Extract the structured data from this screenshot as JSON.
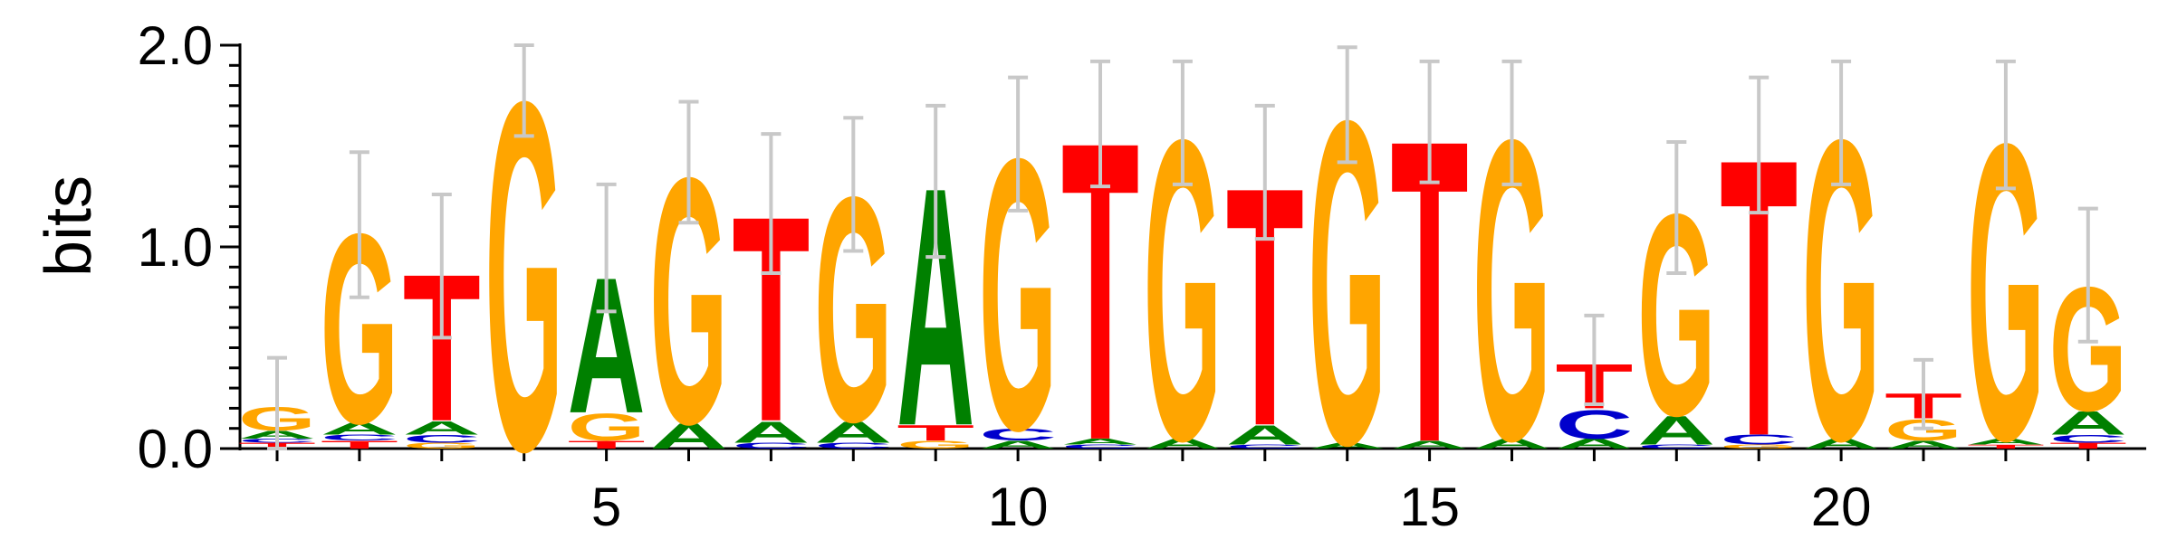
{
  "chart_data": {
    "type": "sequence-logo",
    "ylabel": "bits",
    "ylim": [
      0,
      2
    ],
    "y_ticks": [
      "0.0",
      "1.0",
      "2.0"
    ],
    "x_ticks": [
      "5",
      "10",
      "15",
      "20"
    ],
    "x_tick_positions": [
      5,
      10,
      15,
      20
    ],
    "colors": {
      "A": "#008000",
      "C": "#0000cc",
      "G": "#ffa500",
      "T": "#ff0000"
    },
    "positions": [
      {
        "pos": 1,
        "stack": [
          [
            "T",
            0.03
          ],
          [
            "C",
            0.02
          ],
          [
            "A",
            0.04
          ],
          [
            "G",
            0.12
          ]
        ],
        "error": [
          0.0,
          0.45
        ]
      },
      {
        "pos": 2,
        "stack": [
          [
            "T",
            0.04
          ],
          [
            "C",
            0.03
          ],
          [
            "A",
            0.06
          ],
          [
            "G",
            0.98
          ]
        ],
        "error": [
          0.75,
          1.47
        ]
      },
      {
        "pos": 3,
        "stack": [
          [
            "G",
            0.03
          ],
          [
            "C",
            0.04
          ],
          [
            "A",
            0.07
          ],
          [
            "T",
            0.76
          ]
        ],
        "error": [
          0.55,
          1.26
        ]
      },
      {
        "pos": 4,
        "stack": [
          [
            "G",
            1.8
          ]
        ],
        "error": [
          1.55,
          2.0
        ]
      },
      {
        "pos": 5,
        "stack": [
          [
            "T",
            0.04
          ],
          [
            "G",
            0.14
          ],
          [
            "A",
            0.7
          ]
        ],
        "error": [
          0.68,
          1.31
        ]
      },
      {
        "pos": 6,
        "stack": [
          [
            "A",
            0.13
          ],
          [
            "G",
            1.27
          ]
        ],
        "error": [
          1.12,
          1.72
        ]
      },
      {
        "pos": 7,
        "stack": [
          [
            "C",
            0.03
          ],
          [
            "A",
            0.11
          ],
          [
            "T",
            1.06
          ]
        ],
        "error": [
          0.87,
          1.56
        ]
      },
      {
        "pos": 8,
        "stack": [
          [
            "C",
            0.03
          ],
          [
            "A",
            0.11
          ],
          [
            "G",
            1.16
          ]
        ],
        "error": [
          0.98,
          1.64
        ]
      },
      {
        "pos": 9,
        "stack": [
          [
            "G",
            0.04
          ],
          [
            "T",
            0.08
          ],
          [
            "A",
            1.23
          ]
        ],
        "error": [
          0.95,
          1.7
        ]
      },
      {
        "pos": 10,
        "stack": [
          [
            "A",
            0.04
          ],
          [
            "C",
            0.06
          ],
          [
            "G",
            1.4
          ]
        ],
        "error": [
          1.18,
          1.84
        ]
      },
      {
        "pos": 11,
        "stack": [
          [
            "C",
            0.02
          ],
          [
            "A",
            0.03
          ],
          [
            "T",
            1.54
          ]
        ],
        "error": [
          1.3,
          1.92
        ]
      },
      {
        "pos": 12,
        "stack": [
          [
            "A",
            0.05
          ],
          [
            "G",
            1.55
          ]
        ],
        "error": [
          1.31,
          1.92
        ]
      },
      {
        "pos": 13,
        "stack": [
          [
            "C",
            0.02
          ],
          [
            "A",
            0.1
          ],
          [
            "T",
            1.23
          ]
        ],
        "error": [
          1.04,
          1.7
        ]
      },
      {
        "pos": 14,
        "stack": [
          [
            "A",
            0.03
          ],
          [
            "G",
            1.67
          ]
        ],
        "error": [
          1.42,
          1.99
        ]
      },
      {
        "pos": 15,
        "stack": [
          [
            "A",
            0.04
          ],
          [
            "T",
            1.56
          ]
        ],
        "error": [
          1.32,
          1.92
        ]
      },
      {
        "pos": 16,
        "stack": [
          [
            "A",
            0.05
          ],
          [
            "G",
            1.55
          ]
        ],
        "error": [
          1.31,
          1.92
        ]
      },
      {
        "pos": 17,
        "stack": [
          [
            "A",
            0.05
          ],
          [
            "C",
            0.15
          ],
          [
            "T",
            0.23
          ]
        ],
        "error": [
          0.22,
          0.66
        ]
      },
      {
        "pos": 18,
        "stack": [
          [
            "C",
            0.02
          ],
          [
            "A",
            0.15
          ],
          [
            "G",
            1.04
          ]
        ],
        "error": [
          0.87,
          1.52
        ]
      },
      {
        "pos": 19,
        "stack": [
          [
            "G",
            0.02
          ],
          [
            "C",
            0.05
          ],
          [
            "T",
            1.43
          ]
        ],
        "error": [
          1.17,
          1.84
        ]
      },
      {
        "pos": 20,
        "stack": [
          [
            "A",
            0.05
          ],
          [
            "G",
            1.55
          ]
        ],
        "error": [
          1.31,
          1.92
        ]
      },
      {
        "pos": 21,
        "stack": [
          [
            "A",
            0.04
          ],
          [
            "G",
            0.11
          ],
          [
            "T",
            0.13
          ]
        ],
        "error": [
          0.1,
          0.44
        ]
      },
      {
        "pos": 22,
        "stack": [
          [
            "T",
            0.02
          ],
          [
            "A",
            0.03
          ],
          [
            "G",
            1.53
          ]
        ],
        "error": [
          1.29,
          1.92
        ]
      },
      {
        "pos": 23,
        "stack": [
          [
            "T",
            0.03
          ],
          [
            "C",
            0.04
          ],
          [
            "A",
            0.12
          ],
          [
            "G",
            0.64
          ]
        ],
        "error": [
          0.53,
          1.19
        ]
      }
    ]
  }
}
